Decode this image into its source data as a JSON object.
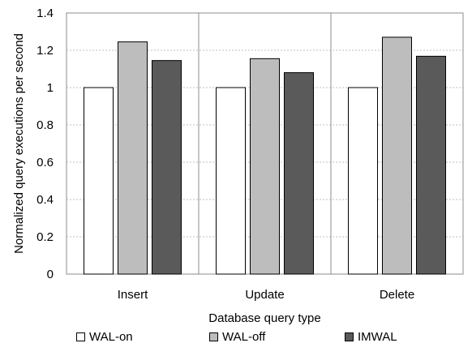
{
  "chart_data": {
    "type": "bar",
    "categories": [
      "Insert",
      "Update",
      "Delete"
    ],
    "series": [
      {
        "name": "WAL-on",
        "values": [
          1.0,
          1.0,
          1.0
        ],
        "color": "#ffffff"
      },
      {
        "name": "WAL-off",
        "values": [
          1.245,
          1.155,
          1.27
        ],
        "color": "#bdbdbd"
      },
      {
        "name": "IMWAL",
        "values": [
          1.145,
          1.08,
          1.168
        ],
        "color": "#5a5a5a"
      }
    ],
    "xlabel": "Database query type",
    "ylabel": "Normalized query executions per second",
    "ylim": [
      0,
      1.4
    ],
    "yticks": [
      "0",
      "0.2",
      "0.4",
      "0.6",
      "0.8",
      "1",
      "1.2",
      "1.4"
    ],
    "grid": true,
    "legend_position": "bottom"
  }
}
